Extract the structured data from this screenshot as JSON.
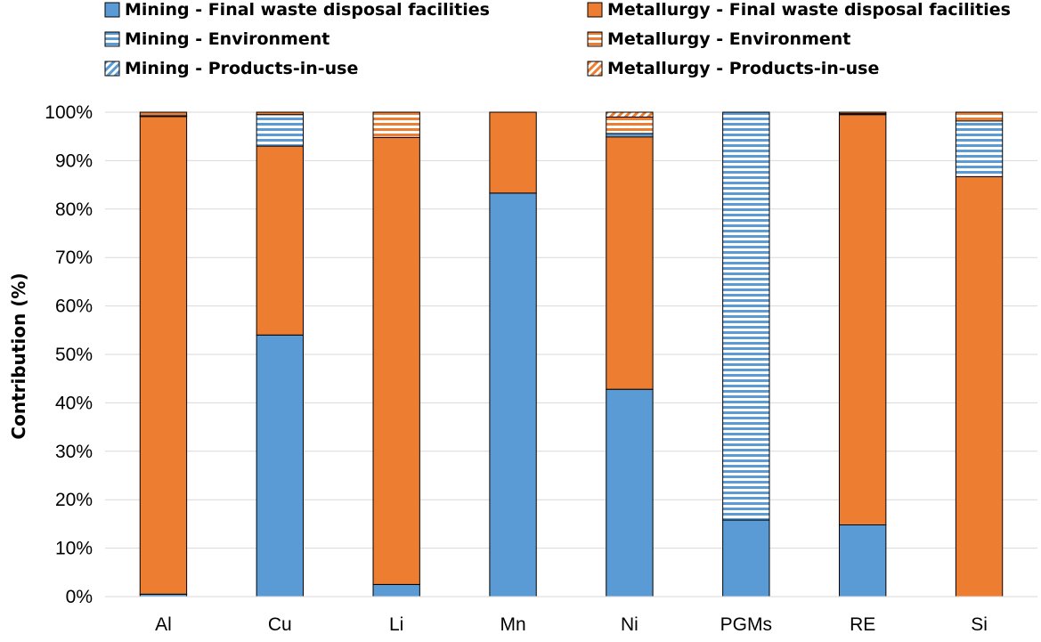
{
  "chart_data": {
    "type": "bar",
    "stacked": true,
    "ylabel": "Contribution (%)",
    "xlabel": "",
    "ylim": [
      0,
      100
    ],
    "yticks": [
      "0%",
      "10%",
      "20%",
      "30%",
      "40%",
      "50%",
      "60%",
      "70%",
      "80%",
      "90%",
      "100%"
    ],
    "grid": "horizontal",
    "legend_position": "top",
    "categories": [
      "Al",
      "Cu",
      "Li",
      "Mn",
      "Ni",
      "PGMs",
      "RE",
      "Si"
    ],
    "series": [
      {
        "name": "Mining - Final waste disposal facilities",
        "color": "#5b9bd5",
        "pattern": "solid",
        "values": [
          0.5,
          54,
          2.5,
          83.3,
          42.8,
          15.8,
          14.8,
          0
        ]
      },
      {
        "name": "Metallurgy - Final waste disposal facilities",
        "color": "#ed7d31",
        "pattern": "solid",
        "values": [
          98.6,
          39,
          92.3,
          16.7,
          52.1,
          0,
          84.7,
          86.7
        ]
      },
      {
        "name": "Mining - Environment",
        "color": "#5b9bd5",
        "pattern": "horizontal-lines",
        "values": [
          0.2,
          6.5,
          0,
          0,
          0.7,
          84.2,
          0.2,
          11.5
        ]
      },
      {
        "name": "Metallurgy - Environment",
        "color": "#ed7d31",
        "pattern": "horizontal-lines",
        "values": [
          0.7,
          0.5,
          5.2,
          0,
          3.4,
          0,
          0.3,
          1.8
        ]
      },
      {
        "name": "Mining - Products-in-use",
        "color": "#5b9bd5",
        "pattern": "diagonal-lines",
        "values": [
          0,
          0,
          0,
          0,
          0,
          0,
          0,
          0
        ]
      },
      {
        "name": "Metallurgy - Products-in-use",
        "color": "#ed7d31",
        "pattern": "diagonal-lines",
        "values": [
          0,
          0,
          0,
          0,
          1,
          0,
          0,
          0
        ]
      }
    ]
  }
}
